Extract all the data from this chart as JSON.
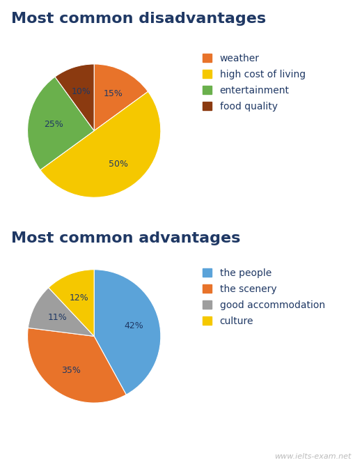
{
  "disadvantages": {
    "title": "Most common disadvantages",
    "values": [
      15,
      50,
      25,
      10
    ],
    "colors": [
      "#E8732A",
      "#F5C800",
      "#6AB04C",
      "#8B3A10"
    ],
    "pct_labels": [
      "15%",
      "50%",
      "25%",
      "10%"
    ],
    "legend_labels": [
      "weather",
      "high cost of living",
      "entertainment",
      "food quality"
    ],
    "startangle": 90
  },
  "advantages": {
    "title": "Most common advantages",
    "values": [
      42,
      35,
      11,
      12
    ],
    "colors": [
      "#5BA3D9",
      "#E8732A",
      "#9E9E9E",
      "#F5C800"
    ],
    "pct_labels": [
      "42%",
      "35%",
      "11%",
      "12%"
    ],
    "legend_labels": [
      "the people",
      "the scenery",
      "good accommodation",
      "culture"
    ],
    "startangle": 90
  },
  "title_fontsize": 16,
  "title_fontweight": "bold",
  "title_color": "#1F3864",
  "label_fontsize": 9,
  "label_color": "#1F3864",
  "legend_fontsize": 10,
  "legend_color": "#1F3864",
  "watermark": "www.ielts-exam.net",
  "background_color": "#FFFFFF"
}
